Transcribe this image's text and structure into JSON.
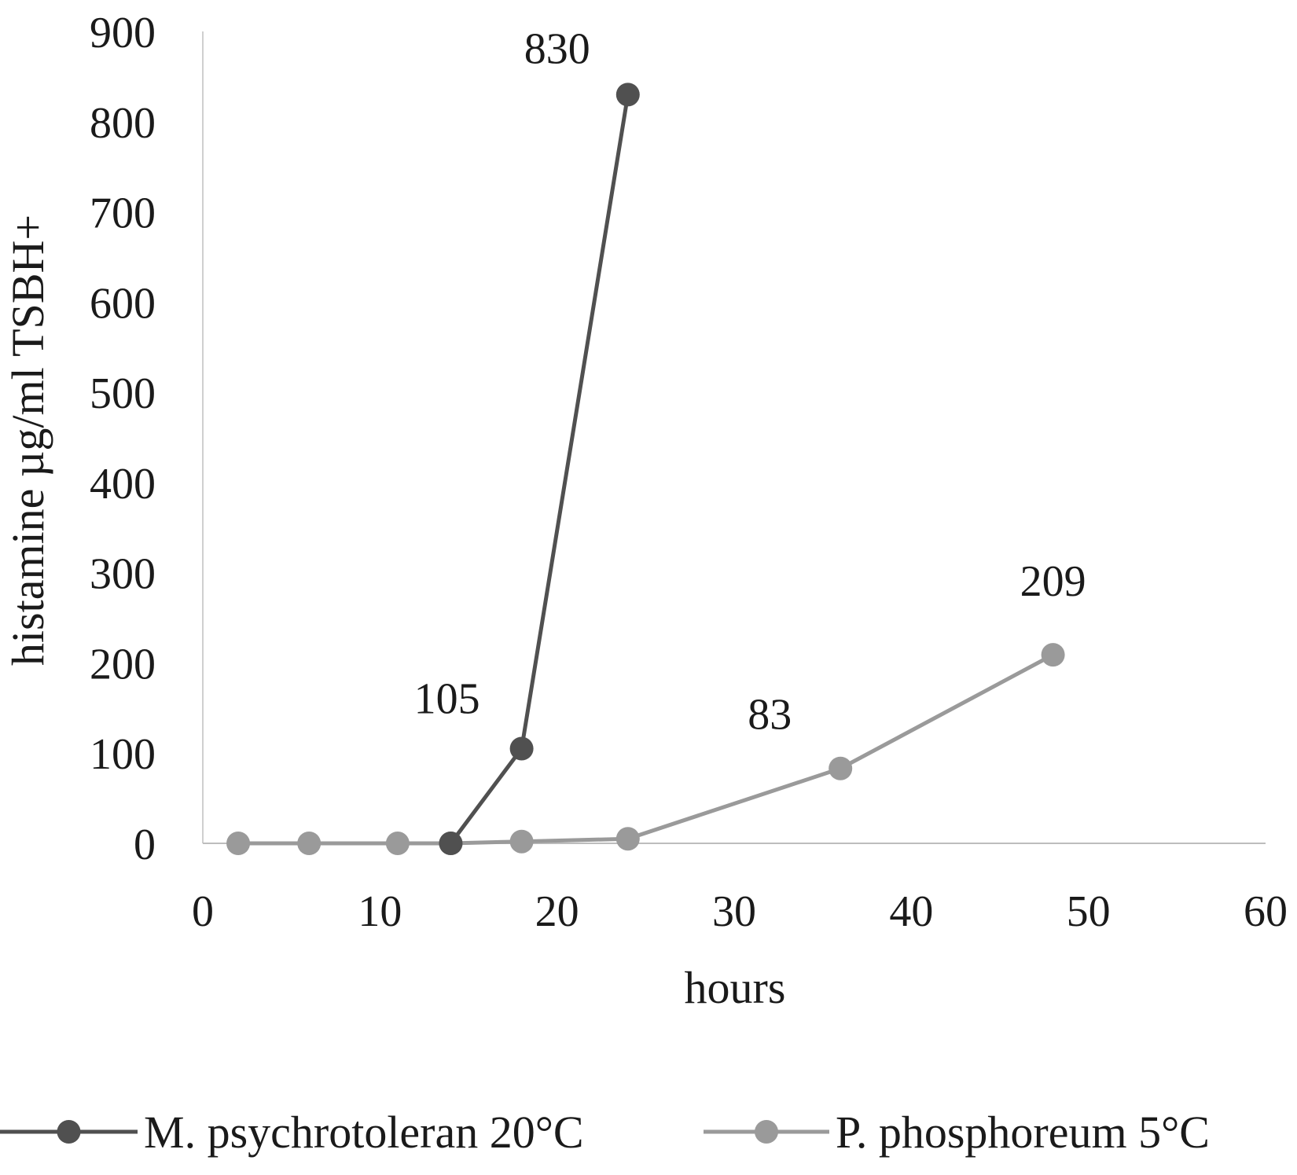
{
  "chart_data": {
    "type": "line",
    "title": "",
    "xlabel": "hours",
    "ylabel": "histamine µg/ml TSBH+",
    "xlim": [
      0,
      60
    ],
    "ylim": [
      0,
      900
    ],
    "xticks": [
      0,
      10,
      20,
      30,
      40,
      50,
      60
    ],
    "yticks": [
      0,
      100,
      200,
      300,
      400,
      500,
      600,
      700,
      800,
      900
    ],
    "grid": false,
    "legend_position": "bottom",
    "series": [
      {
        "name": "M. psychrotoleran 20°C",
        "color": "#505050",
        "points": [
          [
            14,
            0
          ],
          [
            18,
            105
          ],
          [
            24,
            830
          ]
        ],
        "labels": [
          null,
          "105",
          "830"
        ]
      },
      {
        "name": "P. phosphoreum 5°C",
        "color": "#9a9a9a",
        "points": [
          [
            2,
            0
          ],
          [
            6,
            0
          ],
          [
            11,
            0
          ],
          [
            14,
            0
          ],
          [
            18,
            2
          ],
          [
            24,
            5
          ],
          [
            36,
            83
          ],
          [
            48,
            209
          ]
        ],
        "labels": [
          null,
          null,
          null,
          null,
          null,
          null,
          "83",
          "209"
        ]
      }
    ]
  }
}
